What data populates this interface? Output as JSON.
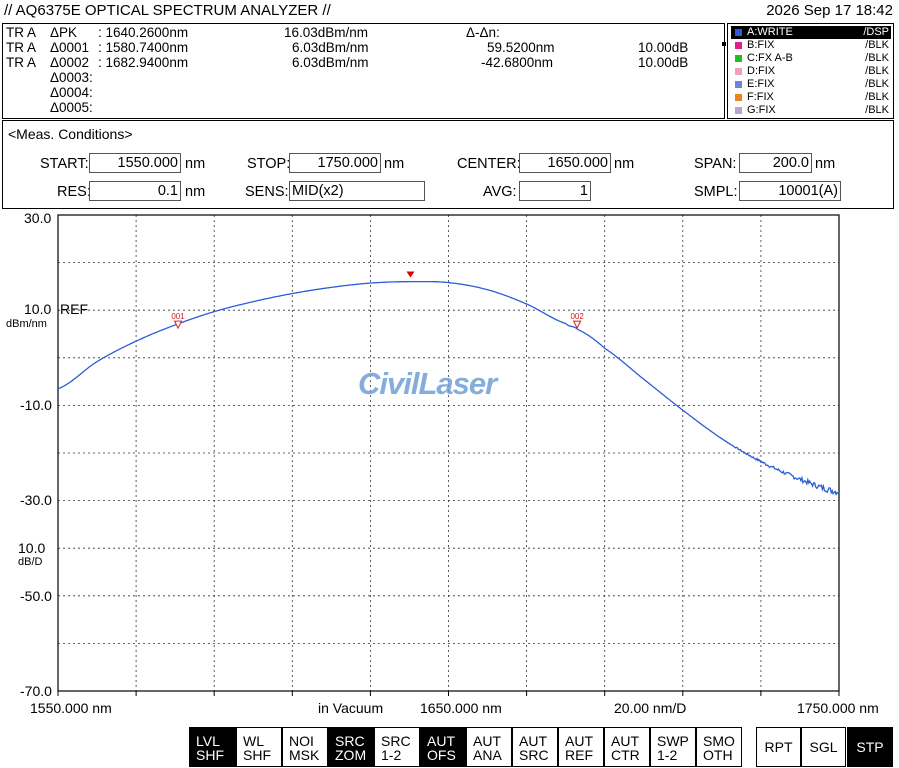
{
  "header": {
    "title": "// AQ6375E OPTICAL SPECTRUM ANALYZER //",
    "datetime": "2026 Sep 17 18:42"
  },
  "markers": [
    {
      "trace": "TR A",
      "name": "ΔPK",
      "wavelength": ": 1640.2600nm",
      "level": "16.03dBm/nm"
    },
    {
      "trace": "TR A",
      "name": "Δ0001",
      "wavelength": ": 1580.7400nm",
      "level": "6.03dBm/nm",
      "delta": "59.5200nm",
      "delta_level": "10.00dB"
    },
    {
      "trace": "TR A",
      "name": "Δ0002",
      "wavelength": ": 1682.9400nm",
      "level": "6.03dBm/nm",
      "delta": "-42.6800nm",
      "delta_level": "10.00dB"
    },
    {
      "name": "Δ0003:"
    },
    {
      "name": "Δ0004:"
    },
    {
      "name": "Δ0005:"
    }
  ],
  "delta_header": "Δ-Δn:",
  "traces": [
    {
      "name": "A:WRITE",
      "mode": "/DSP",
      "color": "#2a5cd8",
      "active": true
    },
    {
      "name": "B:FIX",
      "mode": "/BLK",
      "color": "#e0208a"
    },
    {
      "name": "C:FX A-B",
      "mode": "/BLK",
      "color": "#20c020"
    },
    {
      "name": "D:FIX",
      "mode": "/BLK",
      "color": "#f0a0b8"
    },
    {
      "name": "E:FIX",
      "mode": "/BLK",
      "color": "#7080e0"
    },
    {
      "name": "F:FIX",
      "mode": "/BLK",
      "color": "#f08020"
    },
    {
      "name": "G:FIX",
      "mode": "/BLK",
      "color": "#c0a0d0"
    }
  ],
  "meas": {
    "title": "<Meas. Conditions>",
    "start_label": "START:",
    "start": "1550.000",
    "start_unit": "nm",
    "stop_label": "STOP:",
    "stop": "1750.000",
    "stop_unit": "nm",
    "center_label": "CENTER:",
    "center": "1650.000",
    "center_unit": "nm",
    "span_label": "SPAN:",
    "span": "200.0",
    "span_unit": "nm",
    "res_label": "RES:",
    "res": "0.1",
    "res_unit": "nm",
    "sens_label": "SENS:",
    "sens": "MID(x2)",
    "avg_label": "AVG:",
    "avg": "1",
    "smpl_label": "SMPL:",
    "smpl": "10001(A)"
  },
  "plot": {
    "y_ticks": [
      "30.0",
      "10.0",
      "-10.0",
      "-30.0",
      "-50.0",
      "-70.0"
    ],
    "ref_label": "REF",
    "y_unit": "dBm/nm",
    "scale_value": "10.0",
    "scale_unit": "dB/D",
    "x_start": "1550.000 nm",
    "x_center": "1650.000 nm",
    "x_stop": "1750.000 nm",
    "x_medium": "in Vacuum",
    "x_div": "20.00 nm/D",
    "marker_labels": [
      "001",
      "002"
    ]
  },
  "chart_data": {
    "type": "line",
    "x_unit": "nm",
    "y_unit": "dBm/nm",
    "xlim": [
      1550,
      1750
    ],
    "ylim": [
      -70,
      30
    ],
    "grid": true,
    "series": [
      {
        "color": "#2a5cd8",
        "x": [
          1550,
          1560,
          1570,
          1580,
          1590,
          1600,
          1610,
          1620,
          1630,
          1640,
          1650,
          1660,
          1670,
          1680,
          1683,
          1690,
          1700,
          1710,
          1720,
          1730,
          1740,
          1750
        ],
        "y": [
          -6.5,
          -0.8,
          3.5,
          6.9,
          9.7,
          11.8,
          13.5,
          14.8,
          15.7,
          16.0,
          15.8,
          14.3,
          11.3,
          7.2,
          6.0,
          2.0,
          -4.5,
          -11.0,
          -17.0,
          -21.8,
          -25.5,
          -28.2
        ]
      }
    ],
    "peak_marker": {
      "x": 1640.26,
      "y": 16.03
    },
    "markers": [
      {
        "label": "001",
        "x": 1580.74,
        "y": 6.03
      },
      {
        "label": "002",
        "x": 1682.94,
        "y": 6.03
      }
    ]
  },
  "watermark": "CivilLaser",
  "softkeys": [
    {
      "l1": "LVL",
      "l2": "SHF",
      "on": true
    },
    {
      "l1": "WL",
      "l2": "SHF"
    },
    {
      "l1": "NOI",
      "l2": "MSK"
    },
    {
      "l1": "SRC",
      "l2": "ZOM",
      "on": true
    },
    {
      "l1": "SRC",
      "l2": "1-2"
    },
    {
      "l1": "AUT",
      "l2": "OFS",
      "on": true
    },
    {
      "l1": "AUT",
      "l2": "ANA"
    },
    {
      "l1": "AUT",
      "l2": "SRC"
    },
    {
      "l1": "AUT",
      "l2": "REF"
    },
    {
      "l1": "AUT",
      "l2": "CTR"
    },
    {
      "l1": "SWP",
      "l2": "1-2"
    },
    {
      "l1": "SMO",
      "l2": "OTH"
    }
  ],
  "sweep_keys": [
    {
      "label": "RPT"
    },
    {
      "label": "SGL"
    },
    {
      "label": "STP",
      "on": true
    }
  ]
}
